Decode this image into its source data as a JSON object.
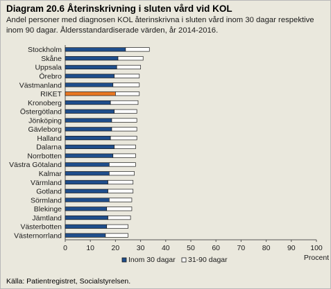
{
  "title": "Diagram 20.6 Återinskrivning i sluten vård vid KOL",
  "subtitle": "Andel personer med diagnosen KOL återinskrivna i sluten vård inom 30 dagar respektive inom 90 dagar. Åldersstandardiserade värden, år 2014-2016.",
  "source": "Källa: Patientregistret, Socialstyrelsen.",
  "colors": {
    "background": "#eae8dd",
    "series_30": "#1f4e8c",
    "series_30_highlight": "#e87722",
    "series_90": "#ffffff",
    "bar_outline": "#1a1a1a",
    "axis": "#555555",
    "grid": "#d0cec4"
  },
  "chart_data": {
    "type": "bar",
    "orientation": "horizontal",
    "stacked": true,
    "categories": [
      "Stockholm",
      "Skåne",
      "Uppsala",
      "Örebro",
      "Västmanland",
      "RIKET",
      "Kronoberg",
      "Östergötland",
      "Jönköping",
      "Gävleborg",
      "Halland",
      "Dalarna",
      "Norrbotten",
      "Västra Götaland",
      "Kalmar",
      "Värmland",
      "Gotland",
      "Sörmland",
      "Blekinge",
      "Jämtland",
      "Västerbotten",
      "Västernorrland"
    ],
    "highlight_category": "RIKET",
    "series": [
      {
        "name": "Inom 30 dagar",
        "values": [
          24,
          21,
          20.5,
          19.5,
          19,
          20,
          18,
          19.5,
          18.5,
          18.5,
          18,
          19.5,
          19,
          17.5,
          17.5,
          17,
          17,
          17.5,
          16.5,
          17,
          16.5,
          16
        ]
      },
      {
        "name": "31-90 dagar",
        "values": [
          9.5,
          10,
          9.5,
          10,
          10.5,
          9.5,
          11,
          9,
          10,
          10,
          10.5,
          8.5,
          9,
          10.5,
          10,
          10,
          10,
          9,
          10,
          9,
          8.5,
          9
        ]
      }
    ],
    "xlim": [
      0,
      100
    ],
    "xticks": [
      "0",
      "10",
      "20",
      "30",
      "40",
      "50",
      "60",
      "70",
      "80",
      "90",
      "100"
    ],
    "xlabel": "Procent",
    "grid": false,
    "legend_position": "bottom"
  }
}
